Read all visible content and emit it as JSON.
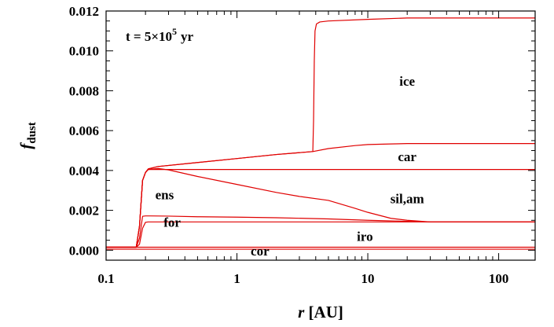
{
  "chart_data": {
    "type": "line",
    "title": "",
    "annotation": {
      "prefix": "t = 5",
      "times": "×",
      "base": "10",
      "exponent": "5",
      "unit": "yr"
    },
    "xlabel": {
      "italic": "r",
      "rest": " [AU]"
    },
    "ylabel": {
      "main": "f",
      "sub": "dust"
    },
    "x_scale": "log",
    "xlim": [
      0.1,
      190
    ],
    "ylim": [
      -0.0005,
      0.012
    ],
    "x_ticks": [
      {
        "value": 0.1,
        "label": "0.1"
      },
      {
        "value": 1,
        "label": "1"
      },
      {
        "value": 10,
        "label": "10"
      },
      {
        "value": 100,
        "label": "100"
      }
    ],
    "y_ticks": [
      {
        "value": 0.0,
        "label": "0.000"
      },
      {
        "value": 0.002,
        "label": "0.002"
      },
      {
        "value": 0.004,
        "label": "0.004"
      },
      {
        "value": 0.006,
        "label": "0.006"
      },
      {
        "value": 0.008,
        "label": "0.008"
      },
      {
        "value": 0.01,
        "label": "0.010"
      },
      {
        "value": 0.012,
        "label": "0.012"
      }
    ],
    "line_color": "#e00000",
    "region_labels": [
      {
        "text": "ice",
        "x": 20,
        "y": 0.0085
      },
      {
        "text": "car",
        "x": 20,
        "y": 0.0047
      },
      {
        "text": "sil,am",
        "x": 20,
        "y": 0.0026
      },
      {
        "text": "ens",
        "x": 0.28,
        "y": 0.0028
      },
      {
        "text": "for",
        "x": 0.32,
        "y": 0.00142
      },
      {
        "text": "iro",
        "x": 9.5,
        "y": 0.0007
      },
      {
        "text": "cor",
        "x": 1.5,
        "y": -3e-05
      }
    ],
    "series": [
      {
        "x": [
          0.1,
          0.17,
          0.18,
          190
        ],
        "y": [
          5e-05,
          5e-05,
          5e-05,
          5e-05
        ]
      },
      {
        "x": [
          0.1,
          0.17,
          0.18,
          190
        ],
        "y": [
          0.00015,
          0.00015,
          0.00015,
          0.00015
        ]
      },
      {
        "x": [
          0.1,
          0.17,
          0.18,
          0.19,
          0.2,
          0.21,
          0.25,
          1,
          10,
          190
        ],
        "y": [
          0.00015,
          0.00015,
          0.0003,
          0.0011,
          0.0014,
          0.00142,
          0.00142,
          0.00142,
          0.00142,
          0.00142
        ]
      },
      {
        "x": [
          0.1,
          0.17,
          0.18,
          0.19,
          0.2,
          0.22,
          0.3,
          0.5,
          1,
          2,
          5,
          10,
          20,
          30,
          190
        ],
        "y": [
          0.00015,
          0.00015,
          0.0006,
          0.0017,
          0.00172,
          0.00172,
          0.00171,
          0.00168,
          0.00166,
          0.00163,
          0.00157,
          0.0015,
          0.00145,
          0.00142,
          0.00142
        ]
      },
      {
        "x": [
          0.1,
          0.17,
          0.18,
          0.19,
          0.2,
          0.21,
          0.25,
          0.3,
          0.5,
          1,
          2,
          3,
          5,
          8,
          10,
          15,
          20,
          30,
          190
        ],
        "y": [
          0.00015,
          0.00015,
          0.0012,
          0.0035,
          0.0039,
          0.00405,
          0.0041,
          0.00403,
          0.0037,
          0.0033,
          0.0029,
          0.0027,
          0.0025,
          0.0021,
          0.0019,
          0.0016,
          0.0015,
          0.00142,
          0.00142
        ]
      },
      {
        "x": [
          0.1,
          0.17,
          0.18,
          0.19,
          0.2,
          0.21,
          0.25,
          1,
          10,
          190
        ],
        "y": [
          0.00015,
          0.00015,
          0.0012,
          0.0035,
          0.0039,
          0.00405,
          0.00405,
          0.00405,
          0.00405,
          0.00405
        ]
      },
      {
        "x": [
          0.1,
          0.17,
          0.18,
          0.19,
          0.2,
          0.21,
          0.25,
          0.5,
          1,
          2,
          3.8,
          5,
          8,
          10,
          15,
          20,
          50,
          190
        ],
        "y": [
          0.00015,
          0.00015,
          0.0012,
          0.0035,
          0.0039,
          0.00408,
          0.0042,
          0.0044,
          0.0046,
          0.0048,
          0.00495,
          0.0051,
          0.00525,
          0.0053,
          0.00533,
          0.00535,
          0.00535,
          0.00535
        ]
      },
      {
        "x": [
          0.1,
          0.17,
          0.18,
          0.19,
          0.2,
          0.21,
          0.25,
          0.5,
          1,
          2,
          3.8,
          3.85,
          3.9,
          3.95,
          4.05,
          4.3,
          5,
          10,
          20,
          50,
          190
        ],
        "y": [
          0.00015,
          0.00015,
          0.0012,
          0.0035,
          0.0039,
          0.00408,
          0.0042,
          0.0044,
          0.0046,
          0.0048,
          0.00495,
          0.0065,
          0.0095,
          0.011,
          0.01135,
          0.01145,
          0.0115,
          0.01158,
          0.01165,
          0.01165,
          0.01165
        ]
      }
    ]
  }
}
